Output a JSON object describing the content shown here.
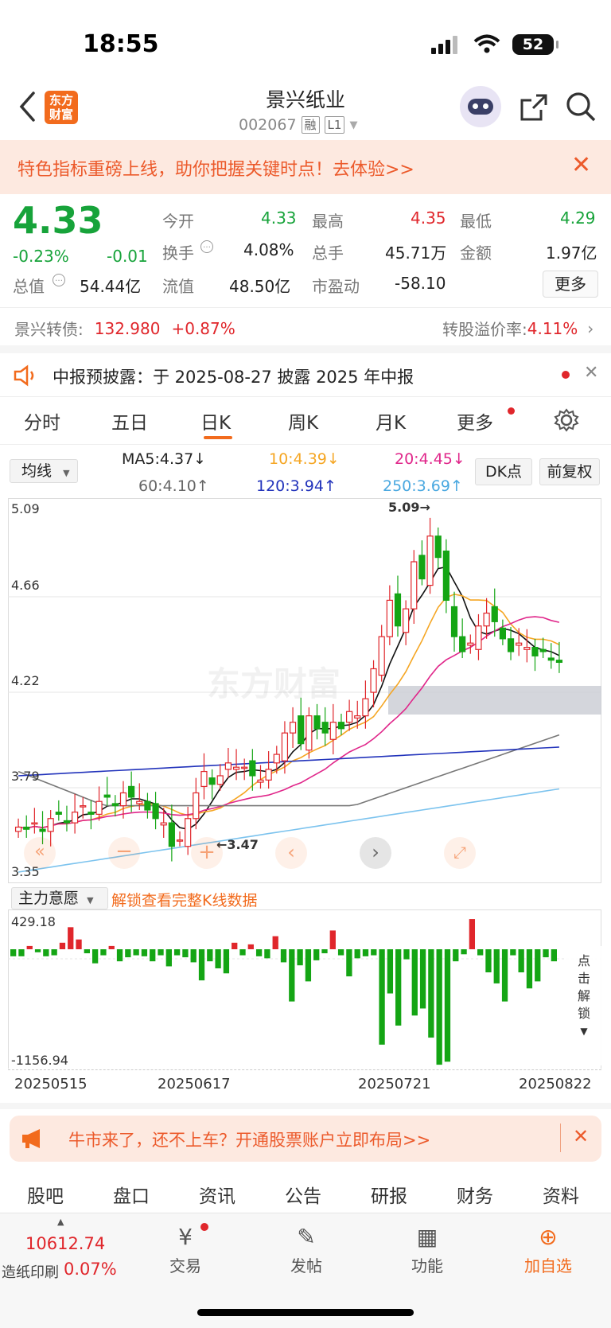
{
  "status_bar": {
    "time": "18:55",
    "battery": "52"
  },
  "header": {
    "stock_name": "景兴纸业",
    "stock_code": "002067",
    "tag_margin": "融",
    "tag_level": "L1",
    "logo_text": "东方财富"
  },
  "promo": {
    "text": "特色指标重磅上线，助你把握关键时点！去体验>>"
  },
  "quote": {
    "price": "4.33",
    "change_pct": "-0.23%",
    "change": "-0.01",
    "open_label": "今开",
    "open": "4.33",
    "high_label": "最高",
    "high": "4.35",
    "low_label": "最低",
    "low": "4.29",
    "turnover_label": "换手",
    "turnover": "4.08%",
    "volume_label": "总手",
    "volume": "45.71万",
    "amount_label": "金额",
    "amount": "1.97亿",
    "mktcap_label": "总值",
    "mktcap": "54.44亿",
    "float_label": "流值",
    "float": "48.50亿",
    "pe_label": "市盈动",
    "pe": "-58.10",
    "more_label": "更多"
  },
  "bond": {
    "label": "景兴转债:",
    "price": "132.980",
    "change": "+0.87%",
    "premium_label": "转股溢价率:",
    "premium": "4.11%"
  },
  "notice": {
    "text": "中报预披露：于 2025-08-27 披露 2025 年中报"
  },
  "period_tabs": [
    "分时",
    "五日",
    "日K",
    "周K",
    "月K",
    "更多"
  ],
  "active_period": "日K",
  "ma": {
    "selector": "均线",
    "ma5": "MA5:4.37↓",
    "ma10": "10:4.39↓",
    "ma20": "20:4.45↓",
    "ma60": "60:4.10↑",
    "ma120": "120:3.94↑",
    "ma250": "250:3.69↑",
    "dk_button": "DK点",
    "adjust_button": "前复权"
  },
  "kline": {
    "y_labels": [
      "5.09",
      "4.66",
      "4.22",
      "3.79",
      "3.35"
    ],
    "high_mark": "5.09→",
    "low_mark": "←3.47",
    "watermark": "东方财富",
    "colors": {
      "up": "#e0262b",
      "down": "#14a514",
      "ma5": "#111111",
      "ma10": "#f5a623",
      "ma20": "#e0268a",
      "ma60": "#777777",
      "ma120": "#2233bb",
      "ma250": "#7cc3ee"
    }
  },
  "flow": {
    "selector": "主力意愿",
    "unlock_text": "解锁查看完整K线数据",
    "y_max": "429.18",
    "y_min": "-1156.94",
    "side_unlock": [
      "点",
      "击",
      "解",
      "锁"
    ],
    "dates": [
      "20250515",
      "20250617",
      "20250721",
      "20250822"
    ],
    "values": [
      -70,
      -70,
      40,
      -30,
      -70,
      -60,
      80,
      270,
      120,
      -40,
      -140,
      -60,
      40,
      -120,
      -80,
      -60,
      -70,
      -120,
      -60,
      -170,
      -60,
      -80,
      -130,
      -310,
      -120,
      -190,
      -240,
      80,
      -60,
      60,
      -70,
      -90,
      160,
      -130,
      -520,
      -160,
      -320,
      -110,
      -40,
      230,
      -60,
      -270,
      -90,
      -70,
      -60,
      -950,
      -440,
      -760,
      -100,
      -660,
      -590,
      -880,
      -1150,
      -1120,
      -120,
      -50,
      370,
      -60,
      -230,
      -340,
      -520,
      -60,
      -230,
      -390,
      -320,
      -80,
      -120
    ]
  },
  "ad": {
    "text": "牛市来了，还不上车？开通股票账户立即布局>>"
  },
  "section_tabs": [
    "股吧",
    "盘口",
    "资讯",
    "公告",
    "研报",
    "财务",
    "资料"
  ],
  "active_section": "股吧",
  "index_ticker": {
    "value": "10612.74",
    "name": "造纸印刷",
    "change": "0.07%"
  },
  "bottom_nav": [
    {
      "label": "交易",
      "icon": "yen-exchange-icon"
    },
    {
      "label": "发帖",
      "icon": "edit-icon"
    },
    {
      "label": "功能",
      "icon": "grid-icon"
    },
    {
      "label": "加自选",
      "icon": "plus-circle-icon"
    }
  ]
}
